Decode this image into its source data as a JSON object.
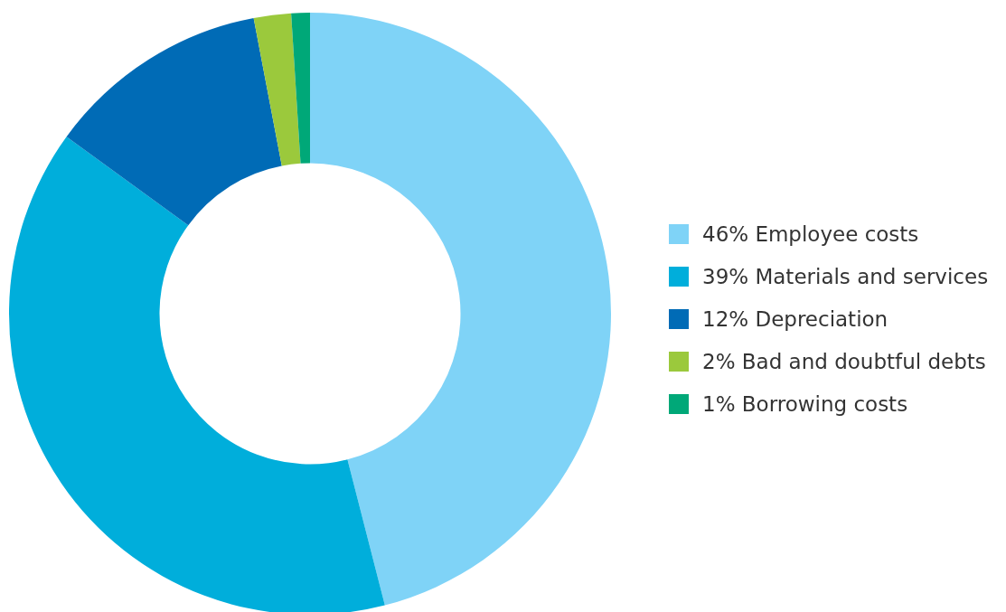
{
  "chart_data": {
    "type": "donut",
    "categories": [
      "Employee costs",
      "Materials and services",
      "Depreciation",
      "Bad and doubtful debts",
      "Borrowing costs"
    ],
    "values": [
      46,
      39,
      12,
      2,
      1
    ],
    "value_labels": [
      "46%",
      "39%",
      "12%",
      "2%",
      "1%"
    ],
    "colors": [
      "#7fd3f7",
      "#00aedb",
      "#006bb6",
      "#9bc93c",
      "#00a878"
    ],
    "legend": "right"
  }
}
